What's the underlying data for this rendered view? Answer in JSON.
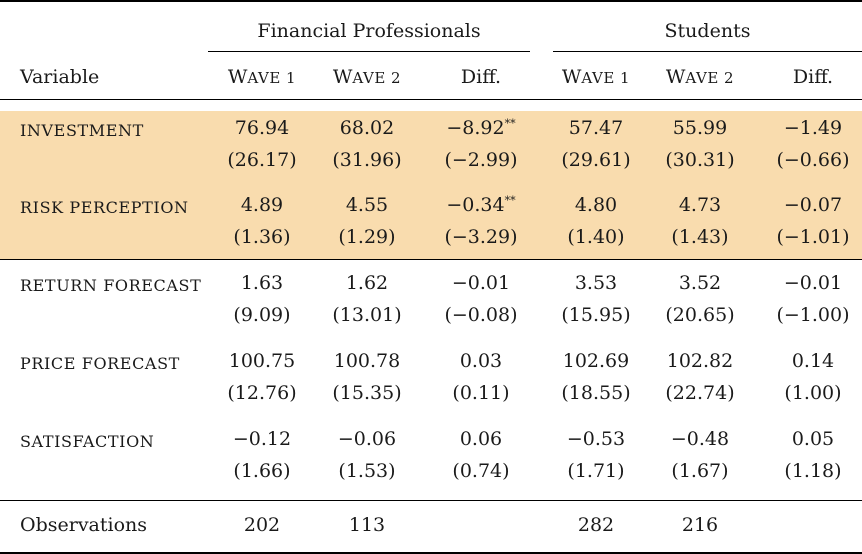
{
  "header": {
    "group1": "Financial Professionals",
    "group2": "Students",
    "variable_label": "Variable",
    "columns": [
      {
        "first": "W",
        "rest": "AVE 1"
      },
      {
        "first": "W",
        "rest": "AVE 2"
      },
      {
        "first": "Diff.",
        "rest": ""
      },
      {
        "first": "W",
        "rest": "AVE 1"
      },
      {
        "first": "W",
        "rest": "AVE 2"
      },
      {
        "first": "Diff.",
        "rest": ""
      }
    ]
  },
  "rows": [
    {
      "label": "INVESTMENT",
      "means": [
        "76.94",
        "68.02",
        "−8.92",
        "57.47",
        "55.99",
        "−1.49"
      ],
      "stars": [
        "",
        "",
        "**",
        "",
        "",
        ""
      ],
      "sub": [
        "(26.17)",
        "(31.96)",
        "(−2.99)",
        "(29.61)",
        "(30.31)",
        "(−0.66)"
      ]
    },
    {
      "label": "RISK PERCEPTION",
      "means": [
        "4.89",
        "4.55",
        "−0.34",
        "4.80",
        "4.73",
        "−0.07"
      ],
      "stars": [
        "",
        "",
        "**",
        "",
        "",
        ""
      ],
      "sub": [
        "(1.36)",
        "(1.29)",
        "(−3.29)",
        "(1.40)",
        "(1.43)",
        "(−1.01)"
      ]
    },
    {
      "label": "RETURN FORECAST",
      "means": [
        "1.63",
        "1.62",
        "−0.01",
        "3.53",
        "3.52",
        "−0.01"
      ],
      "stars": [
        "",
        "",
        "",
        "",
        "",
        ""
      ],
      "sub": [
        "(9.09)",
        "(13.01)",
        "(−0.08)",
        "(15.95)",
        "(20.65)",
        "(−1.00)"
      ]
    },
    {
      "label": "PRICE FORECAST",
      "means": [
        "100.75",
        "100.78",
        "0.03",
        "102.69",
        "102.82",
        "0.14"
      ],
      "stars": [
        "",
        "",
        "",
        "",
        "",
        ""
      ],
      "sub": [
        "(12.76)",
        "(15.35)",
        "(0.11)",
        "(18.55)",
        "(22.74)",
        "(1.00)"
      ]
    },
    {
      "label": "SATISFACTION",
      "means": [
        "−0.12",
        "−0.06",
        "0.06",
        "−0.53",
        "−0.48",
        "0.05"
      ],
      "stars": [
        "",
        "",
        "",
        "",
        "",
        ""
      ],
      "sub": [
        "(1.66)",
        "(1.53)",
        "(0.74)",
        "(1.71)",
        "(1.67)",
        "(1.18)"
      ]
    }
  ],
  "observations": {
    "label": "Observations",
    "values": [
      "202",
      "113",
      "",
      "282",
      "216",
      ""
    ]
  }
}
